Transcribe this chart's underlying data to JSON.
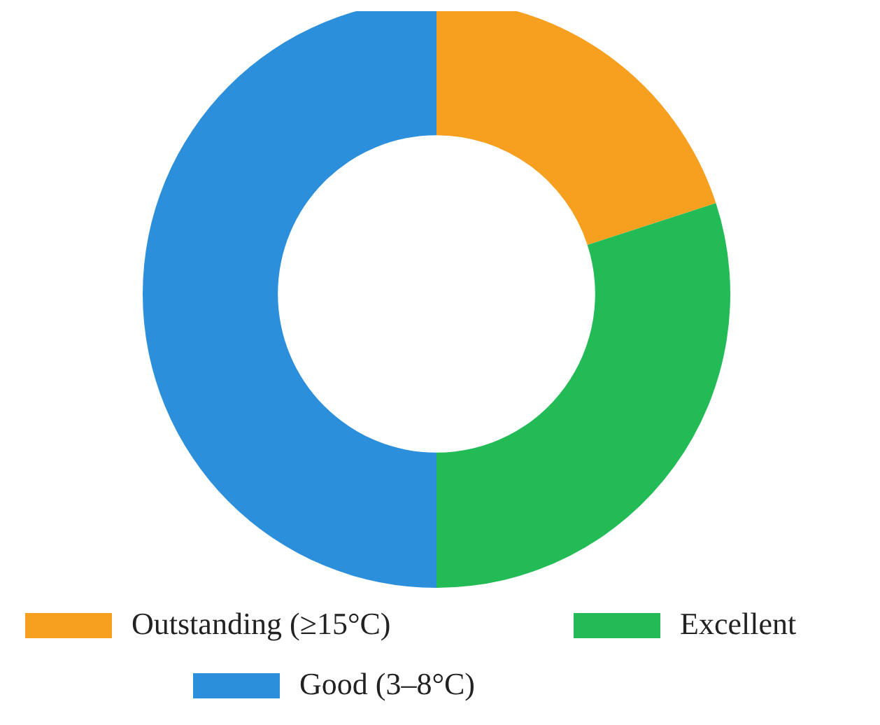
{
  "chart_data": {
    "type": "donut",
    "categories": [
      "Outstanding (≥15°C)",
      "Excellent",
      "Good (3–8°C)"
    ],
    "values": [
      20,
      30,
      50
    ],
    "colors": [
      "#f79f1f",
      "#22bb55",
      "#2b8fdb"
    ],
    "legend": "bottom"
  }
}
